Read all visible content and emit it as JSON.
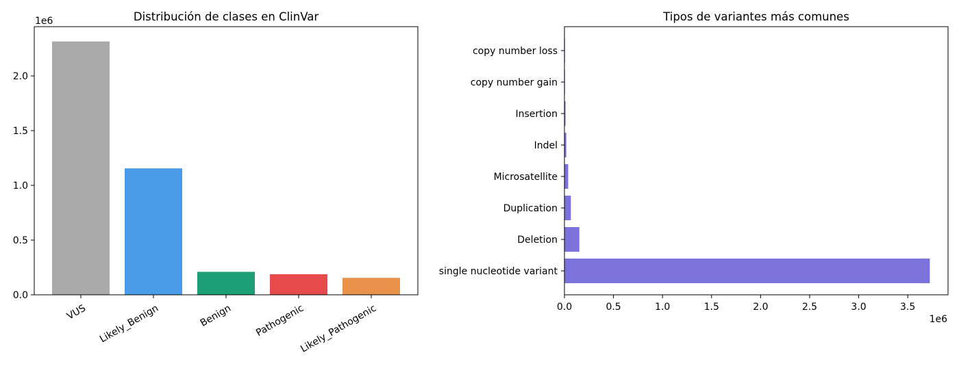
{
  "chart_data": [
    {
      "type": "bar",
      "title": "Distribución de clases en ClinVar",
      "xlabel": "",
      "ylabel": "",
      "scale_label": "1e6",
      "categories": [
        "VUS",
        "Likely_Benign",
        "Benign",
        "Pathogenic",
        "Likely_Pathogenic"
      ],
      "values": [
        2315000,
        1155000,
        210000,
        188000,
        155000
      ],
      "colors": [
        "#aaaaaa",
        "#4a9be8",
        "#1d9e75",
        "#e84b4b",
        "#e8924a"
      ],
      "ylim": [
        0,
        2450000
      ],
      "yticks": [
        0,
        500000,
        1000000,
        1500000,
        2000000
      ],
      "ytick_labels": [
        "0.0",
        "0.5",
        "1.0",
        "1.5",
        "2.0"
      ],
      "grid": false
    },
    {
      "type": "bar",
      "orientation": "horizontal",
      "title": "Tipos de variantes más comunes",
      "xlabel": "",
      "ylabel": "",
      "scale_label": "1e6",
      "categories": [
        "single nucleotide variant",
        "Deletion",
        "Duplication",
        "Microsatellite",
        "Indel",
        "Insertion",
        "copy number gain",
        "copy number loss"
      ],
      "values": [
        3725000,
        152000,
        65000,
        38000,
        19000,
        11000,
        2000,
        1500
      ],
      "color": "#7b72dc",
      "xlim": [
        0,
        3911000
      ],
      "xticks": [
        0,
        500000,
        1000000,
        1500000,
        2000000,
        2500000,
        3000000,
        3500000
      ],
      "xtick_labels": [
        "0.0",
        "0.5",
        "1.0",
        "1.5",
        "2.0",
        "2.5",
        "3.0",
        "3.5"
      ],
      "grid": false
    }
  ]
}
